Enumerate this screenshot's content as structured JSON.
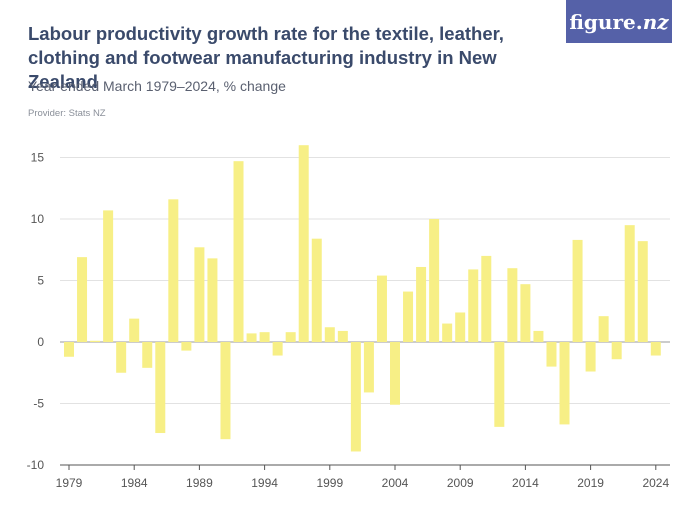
{
  "header": {
    "title": "Labour productivity growth rate for the textile, leather, clothing and footwear manufacturing industry in New Zealand",
    "subtitle": "Year ended March 1979–2024, % change",
    "provider": "Provider: Stats NZ"
  },
  "logo": {
    "text_main": "figure.",
    "text_nz": "nz"
  },
  "chart_data": {
    "type": "bar",
    "categories": [
      1979,
      1980,
      1981,
      1982,
      1983,
      1984,
      1985,
      1986,
      1987,
      1988,
      1989,
      1990,
      1991,
      1992,
      1993,
      1994,
      1995,
      1996,
      1997,
      1998,
      1999,
      2000,
      2001,
      2002,
      2003,
      2004,
      2005,
      2006,
      2007,
      2008,
      2009,
      2010,
      2011,
      2012,
      2013,
      2014,
      2015,
      2016,
      2017,
      2018,
      2019,
      2020,
      2021,
      2022,
      2023,
      2024
    ],
    "values": [
      -1.2,
      6.9,
      0.1,
      10.7,
      -2.5,
      1.9,
      -2.1,
      -7.4,
      11.6,
      -0.7,
      7.7,
      6.8,
      -7.9,
      14.7,
      0.7,
      0.8,
      -1.1,
      0.8,
      16.0,
      8.4,
      1.2,
      0.9,
      -8.9,
      -4.1,
      5.4,
      -5.1,
      4.1,
      6.1,
      10.0,
      1.5,
      2.4,
      5.9,
      7.0,
      -6.9,
      6.0,
      4.7,
      0.9,
      -2.0,
      -6.7,
      8.3,
      -2.4,
      2.1,
      -1.4,
      9.5,
      8.2,
      -1.1
    ],
    "yticks": [
      15,
      10,
      5,
      0,
      -5,
      -10
    ],
    "xticks": [
      1979,
      1984,
      1989,
      1994,
      1999,
      2004,
      2009,
      2014,
      2019,
      2024
    ],
    "ylim": [
      -10,
      16
    ],
    "bar_color": "#f7ef86",
    "grid": true
  }
}
